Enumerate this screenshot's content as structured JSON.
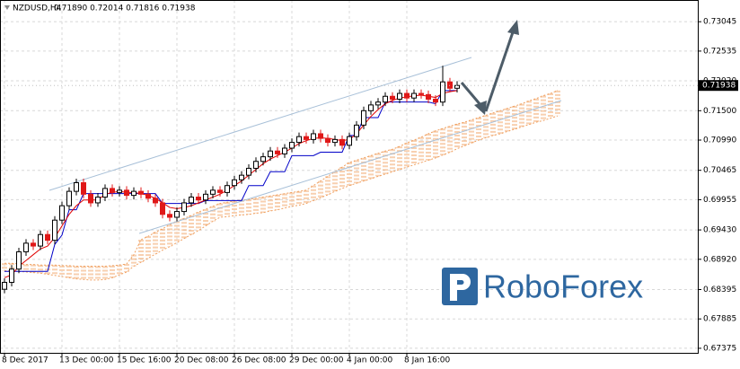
{
  "chart_data": {
    "type": "candlestick",
    "title": "NZDUSD,H4",
    "subtitle": "0.71890 0.72014 0.71816 0.71938",
    "price_label": "0.71938",
    "watermark": "RoboForex",
    "categories": [
      "8 Dec 2017",
      null,
      null,
      null,
      null,
      null,
      null,
      null,
      "13 Dec 00:00",
      null,
      null,
      null,
      null,
      null,
      null,
      null,
      "15 Dec 16:00",
      null,
      null,
      null,
      null,
      null,
      null,
      null,
      "20 Dec 08:00",
      null,
      null,
      null,
      null,
      null,
      null,
      null,
      "26 Dec 08:00",
      null,
      null,
      null,
      null,
      null,
      null,
      null,
      "29 Dec 00:00",
      null,
      null,
      null,
      null,
      null,
      null,
      null,
      "4 Jan 00:00",
      null,
      null,
      null,
      null,
      null,
      null,
      null,
      "8 Jan 16:00",
      null,
      null,
      null,
      null,
      null,
      null,
      null,
      null,
      null,
      null,
      null,
      null,
      null,
      null,
      null,
      null,
      null,
      null,
      null,
      null,
      null
    ],
    "open": [
      0.684,
      0.6852,
      0.6875,
      0.6905,
      0.692,
      0.6915,
      0.6935,
      0.6925,
      0.696,
      0.6985,
      0.701,
      0.7025,
      0.7005,
      0.699,
      0.7,
      0.7015,
      0.7008,
      0.7012,
      0.7003,
      0.701,
      0.7005,
      0.6998,
      0.699,
      0.697,
      0.6965,
      0.6975,
      0.699,
      0.7,
      0.6995,
      0.7005,
      0.7012,
      0.7008,
      0.702,
      0.703,
      0.7038,
      0.705,
      0.7062,
      0.707,
      0.708,
      0.7075,
      0.7085,
      0.7095,
      0.7105,
      0.71,
      0.711,
      0.7102,
      0.7095,
      0.71,
      0.709,
      0.7105,
      0.7125,
      0.715,
      0.716,
      0.7165,
      0.7175,
      0.717,
      0.718,
      0.7172,
      0.718,
      0.7178,
      0.717,
      0.7165,
      0.72,
      0.7189,
      null,
      null,
      null,
      null,
      null,
      null,
      null,
      null,
      null,
      null,
      null,
      null,
      null,
      null
    ],
    "high": [
      0.6859,
      0.6882,
      0.6912,
      0.6927,
      0.6927,
      0.6942,
      0.6942,
      0.6967,
      0.6992,
      0.7017,
      0.7032,
      0.7032,
      0.7012,
      0.7007,
      0.7022,
      0.7022,
      0.7019,
      0.7019,
      0.7017,
      0.7017,
      0.7012,
      0.7005,
      0.6997,
      0.6977,
      0.6982,
      0.6997,
      0.7007,
      0.7007,
      0.7012,
      0.7019,
      0.7019,
      0.7027,
      0.7037,
      0.7045,
      0.7057,
      0.7069,
      0.7077,
      0.7087,
      0.7087,
      0.7092,
      0.7102,
      0.7112,
      0.7112,
      0.7117,
      0.7117,
      0.7109,
      0.7107,
      0.7107,
      0.7112,
      0.7132,
      0.7157,
      0.7167,
      0.7172,
      0.7182,
      0.7182,
      0.7187,
      0.7187,
      0.7187,
      0.7187,
      0.7185,
      0.7177,
      0.7228,
      0.7207,
      0.72014,
      null,
      null,
      null,
      null,
      null,
      null,
      null,
      null,
      null,
      null,
      null,
      null,
      null,
      null
    ],
    "low": [
      0.6833,
      0.6845,
      0.6868,
      0.6898,
      0.6908,
      0.6908,
      0.6918,
      0.6918,
      0.6953,
      0.6978,
      0.7003,
      0.6998,
      0.6983,
      0.6983,
      0.6993,
      0.7001,
      0.7001,
      0.6996,
      0.6996,
      0.6998,
      0.6991,
      0.6983,
      0.6963,
      0.6958,
      0.6958,
      0.6968,
      0.6983,
      0.6988,
      0.6988,
      0.6998,
      0.7001,
      0.7001,
      0.7013,
      0.7023,
      0.7031,
      0.7043,
      0.7055,
      0.7063,
      0.7068,
      0.7068,
      0.7078,
      0.7088,
      0.7093,
      0.7093,
      0.7095,
      0.7088,
      0.7088,
      0.7083,
      0.7083,
      0.7098,
      0.7118,
      0.7143,
      0.7153,
      0.7158,
      0.7163,
      0.7163,
      0.7165,
      0.7165,
      0.7171,
      0.7163,
      0.7158,
      0.7158,
      0.7182,
      0.71816,
      null,
      null,
      null,
      null,
      null,
      null,
      null,
      null,
      null,
      null,
      null,
      null,
      null,
      null
    ],
    "close": [
      0.6852,
      0.6875,
      0.6905,
      0.692,
      0.6915,
      0.6935,
      0.6925,
      0.696,
      0.6985,
      0.701,
      0.7025,
      0.7005,
      0.699,
      0.7,
      0.7015,
      0.7008,
      0.7012,
      0.7003,
      0.701,
      0.7005,
      0.6998,
      0.699,
      0.697,
      0.6965,
      0.6975,
      0.699,
      0.7,
      0.6995,
      0.7005,
      0.7012,
      0.7008,
      0.702,
      0.703,
      0.7038,
      0.705,
      0.7062,
      0.707,
      0.708,
      0.7075,
      0.7085,
      0.7095,
      0.7105,
      0.71,
      0.711,
      0.7102,
      0.7095,
      0.71,
      0.709,
      0.7105,
      0.7125,
      0.715,
      0.716,
      0.7165,
      0.7175,
      0.717,
      0.718,
      0.7172,
      0.718,
      0.7178,
      0.717,
      0.7165,
      0.72,
      0.7189,
      0.71938,
      null,
      null,
      null,
      null,
      null,
      null,
      null,
      null,
      null,
      null,
      null,
      null,
      null,
      null
    ],
    "tenkan": [
      0.686,
      0.6865,
      0.688,
      0.689,
      0.69,
      0.691,
      0.6915,
      0.693,
      0.695,
      0.697,
      0.6985,
      0.6995,
      0.6995,
      0.6995,
      0.7005,
      0.7008,
      0.701,
      0.7008,
      0.7008,
      0.7006,
      0.7003,
      0.6998,
      0.699,
      0.6982,
      0.698,
      0.6982,
      0.6985,
      0.699,
      0.6995,
      0.7,
      0.7005,
      0.7012,
      0.702,
      0.7028,
      0.7038,
      0.7048,
      0.7058,
      0.7066,
      0.7072,
      0.7078,
      0.7085,
      0.7093,
      0.7098,
      0.7102,
      0.7103,
      0.7102,
      0.71,
      0.7098,
      0.71,
      0.711,
      0.7125,
      0.714,
      0.7152,
      0.7162,
      0.7168,
      0.7172,
      0.7174,
      0.7176,
      0.7177,
      0.7175,
      0.7173,
      0.718,
      0.7183,
      0.7185,
      null,
      null,
      null,
      null,
      null,
      null,
      null,
      null,
      null,
      null,
      null,
      null,
      null,
      null
    ],
    "kijun": [
      0.6871,
      0.6871,
      0.6871,
      0.6871,
      0.6871,
      0.6871,
      0.6871,
      0.6918,
      0.6934,
      0.6978,
      0.6978,
      0.7006,
      0.7006,
      0.7006,
      0.7006,
      0.7006,
      0.7006,
      0.7006,
      0.7006,
      0.7006,
      0.7006,
      0.7006,
      0.6989,
      0.6989,
      0.6989,
      0.6989,
      0.6989,
      0.6989,
      0.6994,
      0.6994,
      0.6994,
      0.6994,
      0.6994,
      0.6994,
      0.702,
      0.702,
      0.702,
      0.7044,
      0.7044,
      0.7044,
      0.7072,
      0.7072,
      0.7072,
      0.7072,
      0.7078,
      0.7078,
      0.7078,
      0.7078,
      0.7107,
      0.7107,
      0.7138,
      0.7138,
      0.7138,
      0.7165,
      0.7165,
      0.7165,
      0.7165,
      0.7165,
      0.7165,
      0.7165,
      0.7162,
      0.7185,
      0.7185,
      0.7185,
      null,
      null,
      null,
      null,
      null,
      null,
      null,
      null,
      null,
      null,
      null,
      null,
      null,
      null
    ],
    "span_a": [
      0.6885,
      0.6885,
      0.6884,
      0.6883,
      0.6883,
      0.6882,
      0.6882,
      0.6882,
      0.6881,
      0.6881,
      0.688,
      0.688,
      0.688,
      0.688,
      0.688,
      0.6881,
      0.6882,
      0.6884,
      0.69,
      0.6926,
      0.6932,
      0.6939,
      0.6945,
      0.6952,
      0.6958,
      0.6963,
      0.6968,
      0.6974,
      0.6979,
      0.6984,
      0.6989,
      0.6991,
      0.6993,
      0.6995,
      0.6996,
      0.6998,
      0.7,
      0.7002,
      0.7004,
      0.7006,
      0.7008,
      0.701,
      0.7012,
      0.702,
      0.7028,
      0.7036,
      0.7044,
      0.7052,
      0.706,
      0.7064,
      0.7068,
      0.7072,
      0.7076,
      0.708,
      0.7083,
      0.7088,
      0.7094,
      0.7099,
      0.7104,
      0.711,
      0.7115,
      0.7119,
      0.7123,
      0.7127,
      0.713,
      0.7134,
      0.7138,
      0.7142,
      0.7146,
      0.715,
      0.7154,
      0.7158,
      0.7162,
      0.7167,
      0.7171,
      0.7176,
      0.718,
      0.7185
    ],
    "span_b": [
      0.6872,
      0.6872,
      0.6871,
      0.687,
      0.6869,
      0.6868,
      0.6866,
      0.6864,
      0.6862,
      0.686,
      0.6858,
      0.6857,
      0.6856,
      0.6856,
      0.6857,
      0.686,
      0.6865,
      0.687,
      0.688,
      0.6887,
      0.6894,
      0.6901,
      0.6908,
      0.6914,
      0.6921,
      0.6928,
      0.6935,
      0.6942,
      0.695,
      0.6958,
      0.6965,
      0.6966,
      0.6968,
      0.6969,
      0.697,
      0.6972,
      0.6973,
      0.6976,
      0.6978,
      0.6981,
      0.6984,
      0.6986,
      0.6989,
      0.6994,
      0.6999,
      0.7004,
      0.701,
      0.7015,
      0.702,
      0.7024,
      0.7028,
      0.7032,
      0.7036,
      0.704,
      0.7044,
      0.7048,
      0.7052,
      0.7056,
      0.706,
      0.7064,
      0.7068,
      0.7073,
      0.7078,
      0.7084,
      0.7089,
      0.7094,
      0.7099,
      0.7103,
      0.7107,
      0.711,
      0.7114,
      0.7118,
      0.7122,
      0.7126,
      0.713,
      0.7133,
      0.7137,
      0.7141
    ],
    "up_color": "#000000",
    "down_color": "#e01818",
    "tenkan_color": "#e00000",
    "kijun_color": "#0000c8",
    "cloud_color": "#f0a060",
    "ylim": [
      0.67296,
      0.73422
    ],
    "yticks": [
      {
        "value": 0.73045,
        "label": "0.73045"
      },
      {
        "value": 0.72535,
        "label": "0.72535"
      },
      {
        "value": 0.7202,
        "label": "0.72020"
      },
      {
        "value": 0.715,
        "label": "0.71500"
      },
      {
        "value": 0.7099,
        "label": "0.70990"
      },
      {
        "value": 0.70465,
        "label": "0.70465"
      },
      {
        "value": 0.69955,
        "label": "0.69955"
      },
      {
        "value": 0.6943,
        "label": "0.69430"
      },
      {
        "value": 0.6892,
        "label": "0.68920"
      },
      {
        "value": 0.68395,
        "label": "0.68395"
      },
      {
        "value": 0.67885,
        "label": "0.67885"
      },
      {
        "value": 0.67375,
        "label": "0.67375"
      }
    ],
    "grid": true
  }
}
